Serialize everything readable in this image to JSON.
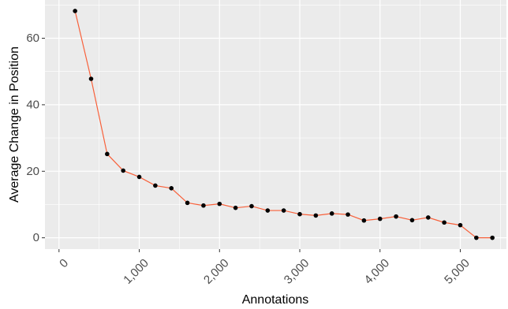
{
  "chart_data": {
    "type": "line",
    "title": "",
    "xlabel": "Annotations",
    "ylabel": "Average Change in Position",
    "xlim": [
      -175,
      5575
    ],
    "ylim": [
      -3.4,
      71.5
    ],
    "x_ticks": [
      0,
      1000,
      2000,
      3000,
      4000,
      5000
    ],
    "x_tick_labels": [
      "0",
      "1,000",
      "2,000",
      "3,000",
      "4,000",
      "5,000"
    ],
    "y_ticks": [
      0,
      20,
      40,
      60
    ],
    "y_tick_labels": [
      "0",
      "20",
      "40",
      "60"
    ],
    "grid": true,
    "legend": "none",
    "colors": {
      "panel_background": "#ebebeb",
      "grid_major": "#ffffff",
      "line": "#f8603a",
      "point": "#000000"
    },
    "series": [
      {
        "x": [
          200,
          400,
          600,
          800,
          1000,
          1200,
          1400,
          1600,
          1800,
          2000,
          2200,
          2400,
          2600,
          2800,
          3000,
          3200,
          3400,
          3600,
          3800,
          4000,
          4200,
          4400,
          4600,
          4800,
          5000,
          5200,
          5400
        ],
        "y": [
          68.2,
          47.8,
          25.2,
          20.2,
          18.3,
          15.7,
          14.9,
          10.5,
          9.7,
          10.2,
          9.0,
          9.5,
          8.2,
          8.2,
          7.1,
          6.7,
          7.3,
          7.0,
          5.2,
          5.7,
          6.4,
          5.3,
          6.1,
          4.6,
          3.8,
          0.0,
          0.0
        ]
      }
    ]
  }
}
